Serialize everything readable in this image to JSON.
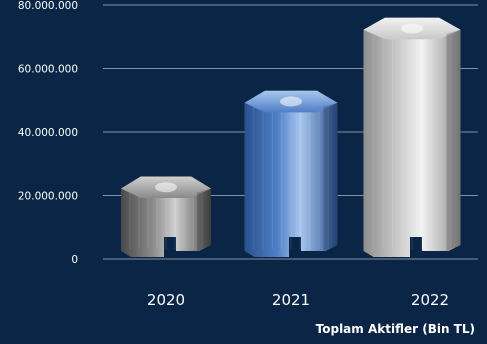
{
  "chart_data": {
    "type": "bar",
    "style": "3d-octagonal-columns",
    "categories": [
      "2020",
      "2021",
      "2022"
    ],
    "values": [
      26000000,
      53000000,
      76000000
    ],
    "yticks": [
      "0",
      "20.000.000",
      "40.000.000",
      "60.000.000",
      "80.000.000"
    ],
    "ylim": [
      0,
      80000000
    ],
    "xlabel": "Toplam Aktifler (Bin TL)",
    "grid": true,
    "colors": {
      "background": "#0a2545",
      "grid": "#c9d2dc",
      "text": "#ffffff",
      "bars": [
        "#8a8a8a",
        "#4f7fc6",
        "#c9c9c9"
      ],
      "bars_light": [
        "#cfcfcf",
        "#a9c6ee",
        "#f2f2f2"
      ],
      "bars_dark": [
        "#4a4a4a",
        "#28518f",
        "#8e8e8e"
      ]
    }
  }
}
